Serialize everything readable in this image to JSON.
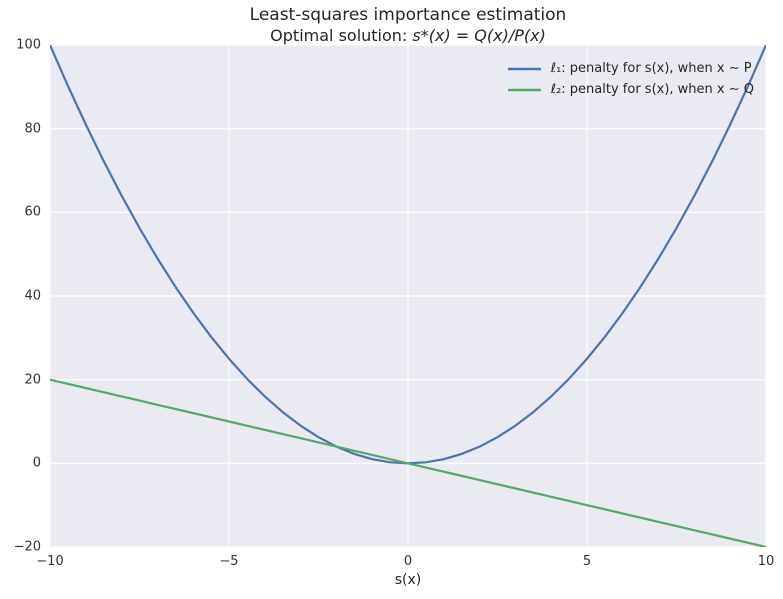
{
  "chart_data": {
    "type": "line",
    "title": "Least-squares importance estimation",
    "subtitle_prefix": "Optimal solution: ",
    "subtitle_math": "s*(x) = Q(x)/P(x)",
    "xlabel": "s(x)",
    "ylabel": "",
    "xlim": [
      -10,
      10
    ],
    "ylim": [
      -20,
      100
    ],
    "xticks": [
      -10,
      -5,
      0,
      5,
      10
    ],
    "yticks": [
      -20,
      0,
      20,
      40,
      60,
      80,
      100
    ],
    "grid": true,
    "legend_position": "upper right",
    "x": [
      -10,
      -9.5,
      -9,
      -8.5,
      -8,
      -7.5,
      -7,
      -6.5,
      -6,
      -5.5,
      -5,
      -4.5,
      -4,
      -3.5,
      -3,
      -2.5,
      -2,
      -1.5,
      -1,
      -0.5,
      0,
      0.5,
      1,
      1.5,
      2,
      2.5,
      3,
      3.5,
      4,
      4.5,
      5,
      5.5,
      6,
      6.5,
      7,
      7.5,
      8,
      8.5,
      9,
      9.5,
      10
    ],
    "series": [
      {
        "name": "ℓ₁: penalty for s(x), when x ∼ P",
        "color": "#4C72B0",
        "values": [
          100,
          90.25,
          81,
          72.25,
          64,
          56.25,
          49,
          42.25,
          36,
          30.25,
          25,
          20.25,
          16,
          12.25,
          9,
          6.25,
          4,
          2.25,
          1,
          0.25,
          0,
          0.25,
          1,
          2.25,
          4,
          6.25,
          9,
          12.25,
          16,
          20.25,
          25,
          30.25,
          36,
          42.25,
          49,
          56.25,
          64,
          72.25,
          81,
          90.25,
          100
        ]
      },
      {
        "name": "ℓ₂: penalty for s(x), when x ∼ Q",
        "color": "#55A868",
        "values": [
          20,
          19,
          18,
          17,
          16,
          15,
          14,
          13,
          12,
          11,
          10,
          9,
          8,
          7,
          6,
          5,
          4,
          3,
          2,
          1,
          0,
          -1,
          -2,
          -3,
          -4,
          -5,
          -6,
          -7,
          -8,
          -9,
          -10,
          -11,
          -12,
          -13,
          -14,
          -15,
          -16,
          -17,
          -18,
          -19,
          -20
        ]
      }
    ],
    "colors": {
      "plot_bg": "#EAEAF2",
      "grid": "#FFFFFF",
      "tick_label": "#333333",
      "title": "#262626"
    }
  }
}
